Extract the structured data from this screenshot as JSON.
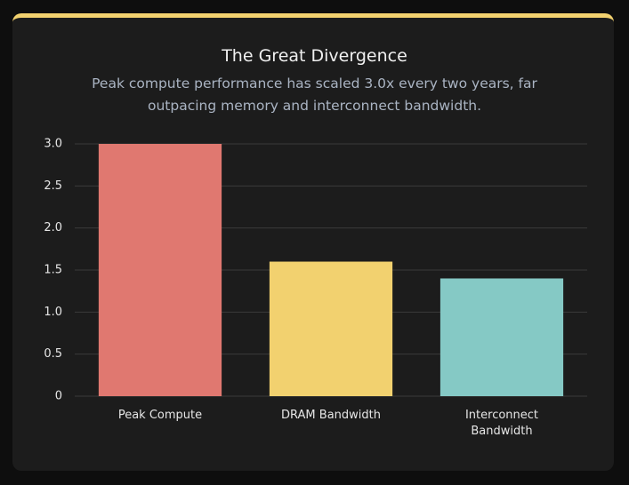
{
  "chart_data": {
    "type": "bar",
    "title": "The Great Divergence",
    "subtitle": "Peak compute performance has scaled 3.0x every two years, far outpacing memory and interconnect bandwidth.",
    "categories": [
      "Peak Compute",
      "DRAM Bandwidth",
      "Interconnect Bandwidth"
    ],
    "values": [
      3.0,
      1.6,
      1.4
    ],
    "colors": [
      "#e07870",
      "#f2d16f",
      "#85c9c5"
    ],
    "ylim": [
      0,
      3
    ],
    "yticks": [
      0,
      0.5,
      {
        "value": 1,
        "label": "1.0"
      },
      1.5,
      {
        "value": 2,
        "label": "2.0"
      },
      2.5,
      {
        "value": 3,
        "label": "3.0"
      }
    ],
    "grid": true
  }
}
